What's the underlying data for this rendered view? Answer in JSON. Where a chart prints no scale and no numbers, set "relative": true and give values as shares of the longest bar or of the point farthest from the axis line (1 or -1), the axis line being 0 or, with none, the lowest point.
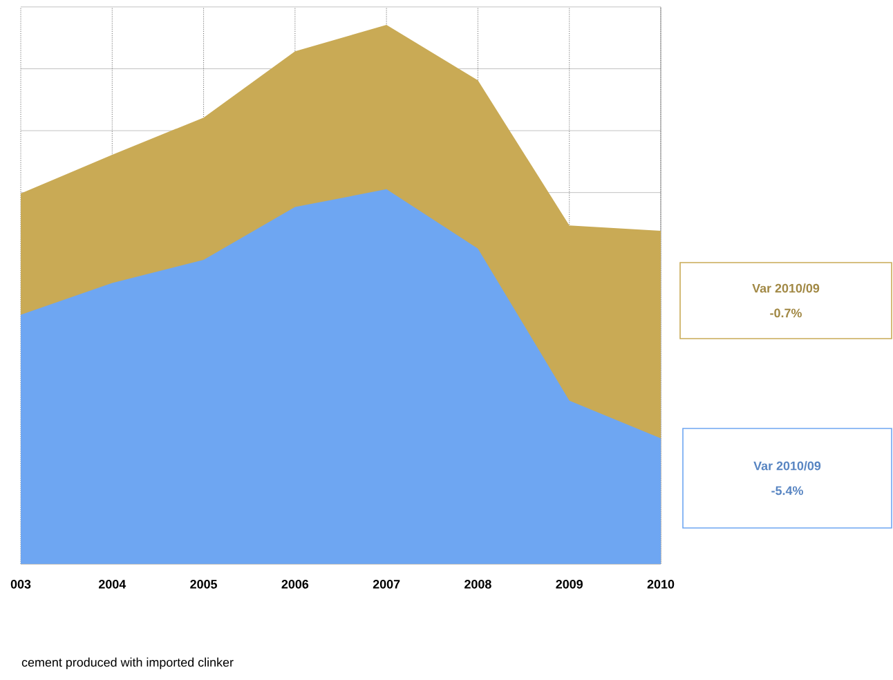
{
  "chart_data": {
    "type": "area",
    "relative": true,
    "categories": [
      "003",
      "2004",
      "2005",
      "2006",
      "2007",
      "2008",
      "2009",
      "2010"
    ],
    "series": [
      {
        "color": "#c9aa55",
        "values": [
          0.687,
          0.759,
          0.828,
          0.951,
          1,
          0.897,
          0.628,
          0.618
        ]
      },
      {
        "color": "#6ea6f2",
        "values": [
          0.462,
          0.521,
          0.564,
          0.662,
          0.695,
          0.585,
          0.303,
          0.233
        ]
      }
    ],
    "grid": true,
    "annotations": [
      "Var 2010/09",
      "-0.7%",
      "Var 2010/09",
      "-5.4%",
      "cement produced with imported clinker"
    ]
  }
}
